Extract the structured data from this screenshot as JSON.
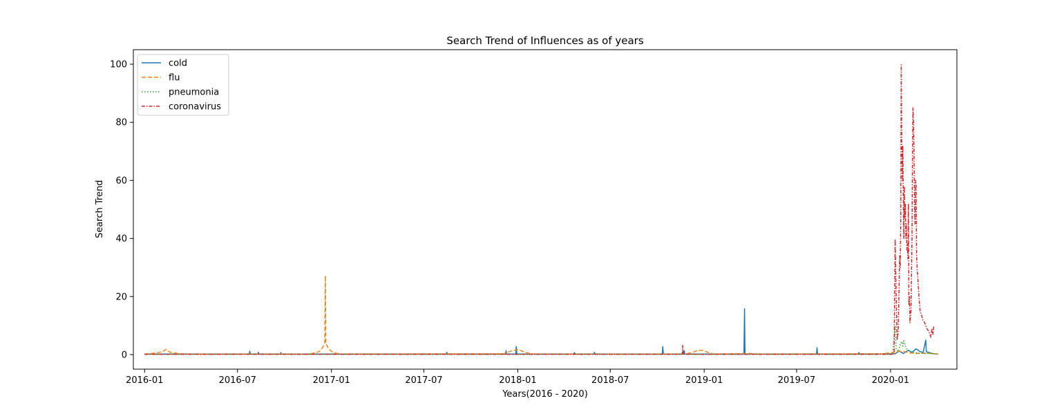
{
  "chart_data": {
    "type": "line",
    "title": "Search Trend of Influences as of years",
    "xlabel": "Years(2016 - 2020)",
    "ylabel": "Search Trend",
    "ylim": [
      -5,
      105
    ],
    "xlim": [
      "2015-12-10",
      "2020-05-10"
    ],
    "xticks": [
      "2016-01",
      "2016-07",
      "2017-01",
      "2017-07",
      "2018-01",
      "2018-07",
      "2019-01",
      "2019-07",
      "2020-01"
    ],
    "yticks": [
      0,
      20,
      40,
      60,
      80,
      100
    ],
    "grid": false,
    "legend": "top-left",
    "series": [
      {
        "name": "cold",
        "color": "#1f77b4",
        "dash": "solid",
        "points": [
          [
            "2016-01-01",
            0.2
          ],
          [
            "2016-02-15",
            0.2
          ],
          [
            "2016-05-01",
            0.2
          ],
          [
            "2016-07-24",
            0.2
          ],
          [
            "2016-07-25",
            1.2
          ],
          [
            "2016-07-26",
            0.2
          ],
          [
            "2016-08-10",
            0.2
          ],
          [
            "2016-08-11",
            0.8
          ],
          [
            "2016-08-12",
            0.2
          ],
          [
            "2016-09-23",
            0.2
          ],
          [
            "2016-09-24",
            0.7
          ],
          [
            "2016-09-25",
            0.2
          ],
          [
            "2017-08-14",
            0.2
          ],
          [
            "2017-08-15",
            0.8
          ],
          [
            "2017-08-16",
            0.2
          ],
          [
            "2017-12-08",
            0.2
          ],
          [
            "2017-12-09",
            1.4
          ],
          [
            "2017-12-10",
            0.2
          ],
          [
            "2017-12-28",
            0.2
          ],
          [
            "2017-12-29",
            2.8
          ],
          [
            "2017-12-30",
            0.2
          ],
          [
            "2018-04-21",
            0.2
          ],
          [
            "2018-04-22",
            0.7
          ],
          [
            "2018-04-23",
            0.2
          ],
          [
            "2018-05-30",
            0.2
          ],
          [
            "2018-05-31",
            0.8
          ],
          [
            "2018-06-01",
            0.2
          ],
          [
            "2018-10-11",
            0.2
          ],
          [
            "2018-10-12",
            2.8
          ],
          [
            "2018-10-13",
            0.2
          ],
          [
            "2018-11-22",
            0.2
          ],
          [
            "2018-11-23",
            1.4
          ],
          [
            "2018-11-24",
            0.2
          ],
          [
            "2019-03-20",
            0.2
          ],
          [
            "2019-03-21",
            15.8
          ],
          [
            "2019-03-22",
            0.2
          ],
          [
            "2019-08-09",
            0.2
          ],
          [
            "2019-08-10",
            2.4
          ],
          [
            "2019-08-11",
            0.2
          ],
          [
            "2019-10-30",
            0.2
          ],
          [
            "2019-10-31",
            0.7
          ],
          [
            "2019-11-01",
            0.2
          ],
          [
            "2020-01-10",
            0.3
          ],
          [
            "2020-01-18",
            1.2
          ],
          [
            "2020-01-26",
            0.4
          ],
          [
            "2020-02-05",
            1.5
          ],
          [
            "2020-02-12",
            0.8
          ],
          [
            "2020-02-20",
            2.0
          ],
          [
            "2020-02-28",
            1.0
          ],
          [
            "2020-03-05",
            0.8
          ],
          [
            "2020-03-10",
            5.0
          ],
          [
            "2020-03-11",
            1.0
          ],
          [
            "2020-03-15",
            0.8
          ],
          [
            "2020-03-25",
            0.3
          ],
          [
            "2020-04-03",
            0.3
          ]
        ]
      },
      {
        "name": "flu",
        "color": "#ff7f0e",
        "dash": "dashed",
        "points": [
          [
            "2016-01-01",
            0.2
          ],
          [
            "2016-01-20",
            0.5
          ],
          [
            "2016-02-05",
            1.0
          ],
          [
            "2016-02-12",
            1.8
          ],
          [
            "2016-02-20",
            0.8
          ],
          [
            "2016-03-10",
            0.3
          ],
          [
            "2016-04-01",
            0.2
          ],
          [
            "2016-11-20",
            0.2
          ],
          [
            "2016-12-08",
            1.0
          ],
          [
            "2016-12-15",
            2.5
          ],
          [
            "2016-12-19",
            4.0
          ],
          [
            "2016-12-20",
            27.2
          ],
          [
            "2016-12-21",
            4.0
          ],
          [
            "2016-12-26",
            2.0
          ],
          [
            "2017-01-05",
            0.6
          ],
          [
            "2017-01-20",
            0.2
          ],
          [
            "2017-12-05",
            0.3
          ],
          [
            "2017-12-18",
            1.2
          ],
          [
            "2018-01-02",
            1.8
          ],
          [
            "2018-01-12",
            1.0
          ],
          [
            "2018-01-25",
            0.3
          ],
          [
            "2018-02-10",
            0.2
          ],
          [
            "2018-11-25",
            0.2
          ],
          [
            "2018-12-10",
            0.8
          ],
          [
            "2018-12-20",
            1.5
          ],
          [
            "2018-12-28",
            1.5
          ],
          [
            "2019-01-08",
            0.8
          ],
          [
            "2019-01-20",
            0.2
          ],
          [
            "2019-04-01",
            0.4
          ],
          [
            "2019-04-15",
            0.2
          ],
          [
            "2019-12-15",
            0.3
          ],
          [
            "2020-01-01",
            0.6
          ],
          [
            "2020-01-15",
            1.0
          ],
          [
            "2020-01-25",
            1.2
          ],
          [
            "2020-02-05",
            0.6
          ],
          [
            "2020-02-20",
            0.4
          ],
          [
            "2020-03-15",
            0.5
          ],
          [
            "2020-04-03",
            0.2
          ]
        ]
      },
      {
        "name": "pneumonia",
        "color": "#2ca02c",
        "dash": "dotted",
        "points": [
          [
            "2016-01-01",
            0.1
          ],
          [
            "2019-12-25",
            0.1
          ],
          [
            "2020-01-05",
            0.3
          ],
          [
            "2020-01-10",
            10.0
          ],
          [
            "2020-01-12",
            2.0
          ],
          [
            "2020-01-16",
            1.0
          ],
          [
            "2020-01-21",
            4.0
          ],
          [
            "2020-01-23",
            4.5
          ],
          [
            "2020-01-25",
            3.0
          ],
          [
            "2020-01-27",
            4.8
          ],
          [
            "2020-01-29",
            3.5
          ],
          [
            "2020-02-03",
            1.5
          ],
          [
            "2020-02-12",
            0.8
          ],
          [
            "2020-02-25",
            0.5
          ],
          [
            "2020-03-15",
            0.4
          ],
          [
            "2020-04-03",
            0.2
          ]
        ]
      },
      {
        "name": "coronavirus",
        "color": "#d62728",
        "dash": "dashdot",
        "points": [
          [
            "2016-01-01",
            0.1
          ],
          [
            "2018-11-19",
            0.1
          ],
          [
            "2018-11-20",
            3.2
          ],
          [
            "2018-11-21",
            0.1
          ],
          [
            "2020-01-08",
            0.1
          ],
          [
            "2020-01-10",
            39.8
          ],
          [
            "2020-01-12",
            20.0
          ],
          [
            "2020-01-14",
            5.0
          ],
          [
            "2020-01-16",
            8.0
          ],
          [
            "2020-01-19",
            34.0
          ],
          [
            "2020-01-20",
            30.0
          ],
          [
            "2020-01-21",
            45.0
          ],
          [
            "2020-01-22",
            99.8
          ],
          [
            "2020-01-23",
            71.0
          ],
          [
            "2020-01-24",
            60.0
          ],
          [
            "2020-01-25",
            72.0
          ],
          [
            "2020-01-26",
            55.0
          ],
          [
            "2020-01-27",
            40.0
          ],
          [
            "2020-01-28",
            58.0
          ],
          [
            "2020-01-29",
            47.0
          ],
          [
            "2020-01-30",
            52.0
          ],
          [
            "2020-01-31",
            40.0
          ],
          [
            "2020-02-01",
            45.0
          ],
          [
            "2020-02-02",
            36.0
          ],
          [
            "2020-02-03",
            38.0
          ],
          [
            "2020-02-04",
            33.0
          ],
          [
            "2020-02-05",
            52.0
          ],
          [
            "2020-02-06",
            17.0
          ],
          [
            "2020-02-07",
            20.0
          ],
          [
            "2020-02-08",
            11.0
          ],
          [
            "2020-02-10",
            15.0
          ],
          [
            "2020-02-12",
            40.0
          ],
          [
            "2020-02-13",
            70.0
          ],
          [
            "2020-02-14",
            85.0
          ],
          [
            "2020-02-15",
            80.0
          ],
          [
            "2020-02-16",
            70.0
          ],
          [
            "2020-02-17",
            50.0
          ],
          [
            "2020-02-18",
            45.0
          ],
          [
            "2020-02-19",
            60.0
          ],
          [
            "2020-02-20",
            58.0
          ],
          [
            "2020-02-21",
            35.0
          ],
          [
            "2020-02-22",
            30.0
          ],
          [
            "2020-02-24",
            25.0
          ],
          [
            "2020-02-26",
            19.0
          ],
          [
            "2020-02-28",
            15.0
          ],
          [
            "2020-03-01",
            14.0
          ],
          [
            "2020-03-04",
            12.0
          ],
          [
            "2020-03-08",
            11.0
          ],
          [
            "2020-03-12",
            9.0
          ],
          [
            "2020-03-16",
            8.0
          ],
          [
            "2020-03-20",
            6.0
          ],
          [
            "2020-03-22",
            9.0
          ],
          [
            "2020-03-24",
            7.0
          ],
          [
            "2020-03-26",
            10.0
          ]
        ]
      }
    ]
  }
}
